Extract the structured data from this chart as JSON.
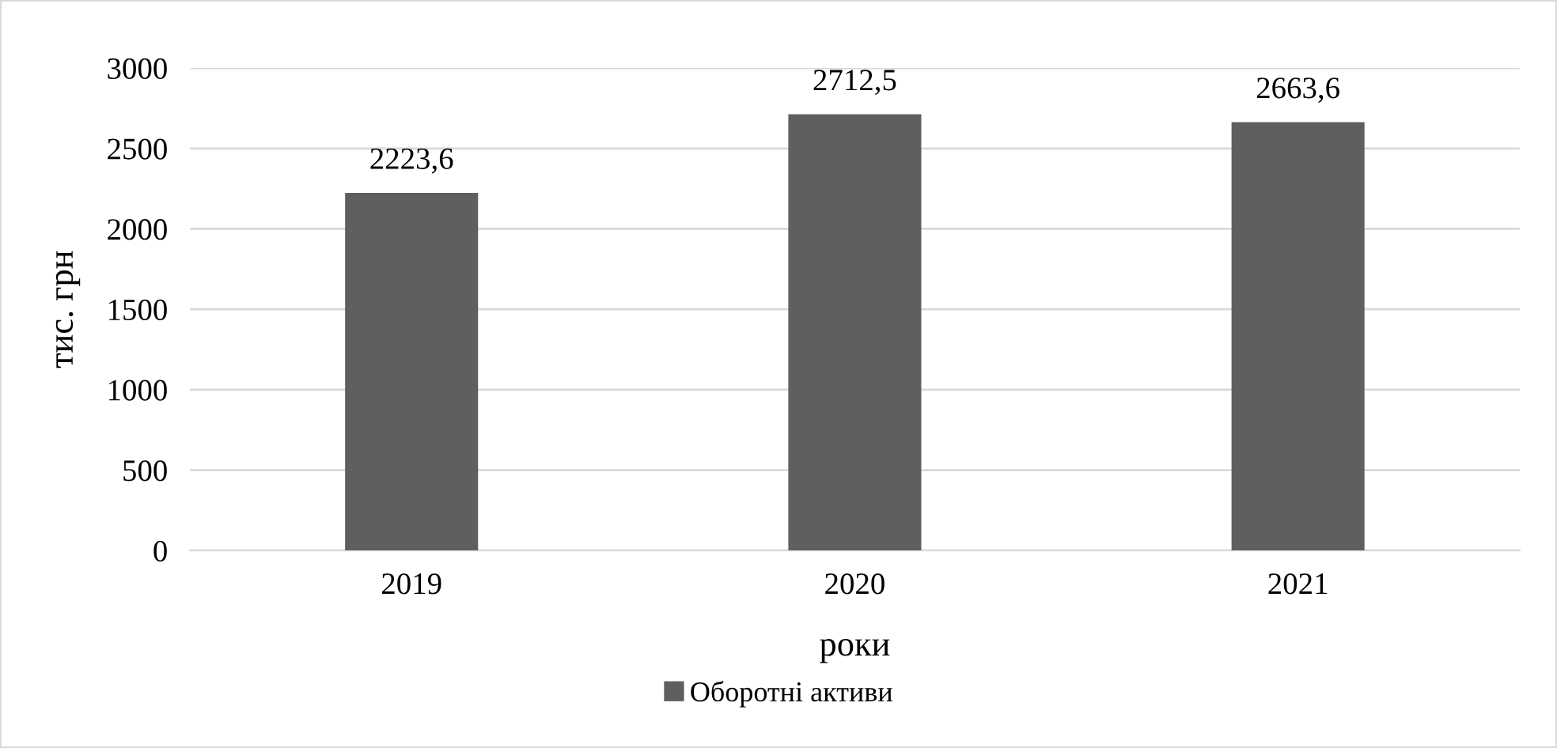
{
  "chart_data": {
    "type": "bar",
    "categories": [
      "2019",
      "2020",
      "2021"
    ],
    "series": [
      {
        "name": "Оборотні активи",
        "color": "#5f5f5f",
        "values": [
          2223.6,
          2712.5,
          2663.6
        ],
        "value_labels": [
          "2223,6",
          "2712,5",
          "2663,6"
        ]
      }
    ],
    "xlabel": "роки",
    "ylabel": "тис. грн",
    "ylim": [
      0,
      3000
    ],
    "yticks": [
      0,
      500,
      1000,
      1500,
      2000,
      2500,
      3000
    ],
    "grid": "y",
    "legend": "bottom"
  }
}
